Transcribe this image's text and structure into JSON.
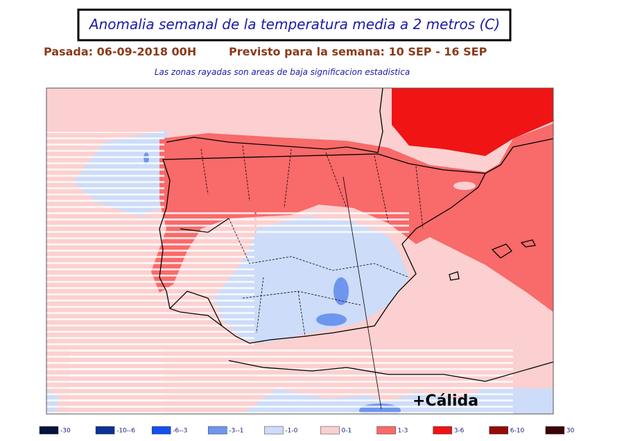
{
  "header": {
    "title": "Anomalia semanal de la temperatura media a 2 metros (C)",
    "subtitle_left": "Pasada: 06-09-2018 00H",
    "subtitle_right": "Previsto para la semana:  10 SEP - 16 SEP",
    "note": "Las zonas rayadas son areas de baja significacion estadistica"
  },
  "map": {
    "annotation": "+Cálida"
  },
  "legend": [
    {
      "label": "-30",
      "color": "#04143c"
    },
    {
      "label": "-10--6",
      "color": "#0a3296"
    },
    {
      "label": "-6--3",
      "color": "#1450f0"
    },
    {
      "label": "-3--1",
      "color": "#6e96ee"
    },
    {
      "label": "-1-0",
      "color": "#cddcf8"
    },
    {
      "label": "0-1",
      "color": "#fcd0d0"
    },
    {
      "label": "1-3",
      "color": "#f96a6a"
    },
    {
      "label": "3-6",
      "color": "#f01414"
    },
    {
      "label": "6-10",
      "color": "#960a0a"
    },
    {
      "label": "30",
      "color": "#3c0404"
    }
  ]
}
